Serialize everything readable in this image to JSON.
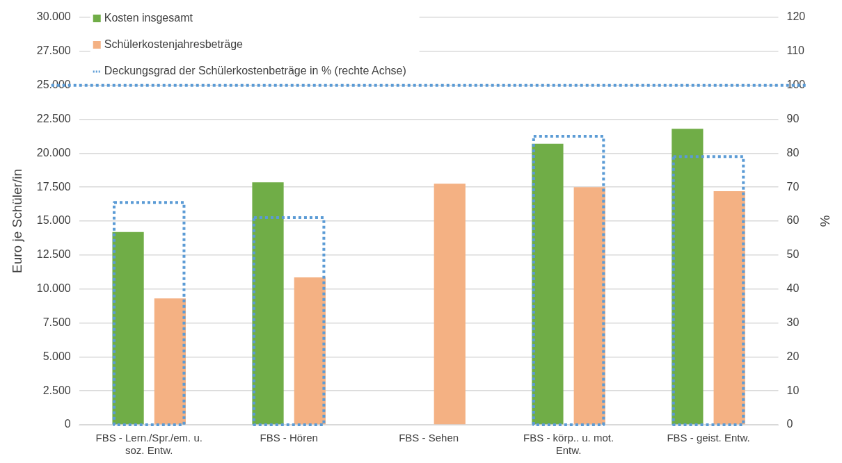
{
  "chart_data": {
    "type": "bar",
    "categories": [
      "FBS - Lern./Spr./em. u. soz. Entw.",
      "FBS - Hören",
      "FBS - Sehen",
      "FBS - körp.. u. mot. Entw.",
      "FBS - geist. Entw."
    ],
    "series": [
      {
        "name": "Kosten insgesamt",
        "color": "#70ad47",
        "values": [
          14200,
          17850,
          null,
          20700,
          21800
        ]
      },
      {
        "name": "Schülerkostenjahresbeträge",
        "color": "#f4b183",
        "values": [
          9300,
          10850,
          17750,
          17500,
          17200
        ]
      },
      {
        "name": "Deckungsgrad der Schülerkostenbeträge in % (rechte Achse)",
        "color": "#5b9bd5",
        "values": [
          65.5,
          61,
          null,
          85,
          79
        ],
        "axis": "y2",
        "line_style": "dotted"
      }
    ],
    "ylabel": "Euro je Schüler/in",
    "y2label": "%",
    "ylim": [
      0,
      30000
    ],
    "yticks": [
      {
        "value": 0,
        "label": "0"
      },
      {
        "value": 2500,
        "label": "2.500"
      },
      {
        "value": 5000,
        "label": "5.000"
      },
      {
        "value": 7500,
        "label": "7.500"
      },
      {
        "value": 10000,
        "label": "10.000"
      },
      {
        "value": 12500,
        "label": "12.500"
      },
      {
        "value": 15000,
        "label": "15.000"
      },
      {
        "value": 17500,
        "label": "17.500"
      },
      {
        "value": 20000,
        "label": "20.000"
      },
      {
        "value": 22500,
        "label": "22.500"
      },
      {
        "value": 25000,
        "label": "25.000"
      },
      {
        "value": 27500,
        "label": "27.500"
      },
      {
        "value": 30000,
        "label": "30.000"
      }
    ],
    "y2lim": [
      0,
      120
    ],
    "y2ticks": [
      0,
      10,
      20,
      30,
      40,
      50,
      60,
      70,
      80,
      90,
      100,
      110,
      120
    ],
    "ref_lines": [
      {
        "axis": "y2",
        "value": 100,
        "color": "#5b9bd5",
        "line_style": "dotted"
      }
    ],
    "grid": "y",
    "legend": "top left"
  }
}
